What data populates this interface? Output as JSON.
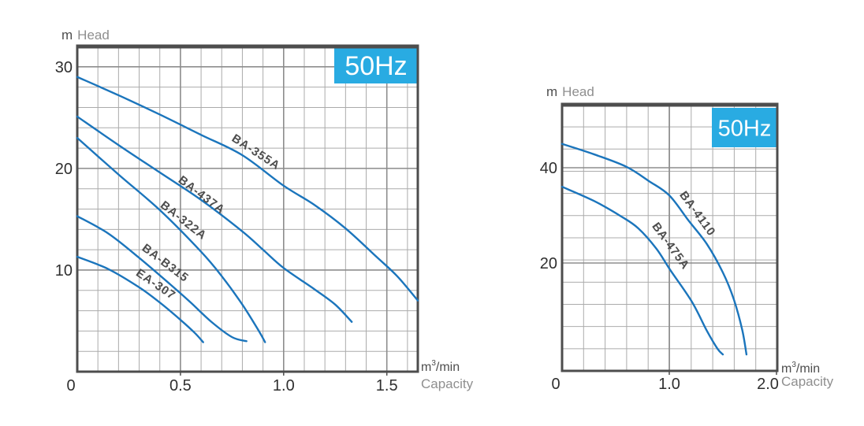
{
  "page": {
    "background": "#ffffff"
  },
  "colors": {
    "curve": "#1b75bc",
    "badge_bg": "#29abe2",
    "badge_text": "#ffffff",
    "frame": "#4d4d4d",
    "grid_minor": "#ababab",
    "grid_major": "#8d8d8d",
    "tick_text": "#2f2f2f",
    "unit_text": "#4d4d4d",
    "muted_text": "#8f8f8f",
    "curve_label": "#4d4d4d"
  },
  "chart_data": [
    {
      "id": "left",
      "type": "line",
      "frequency_badge": "50Hz",
      "y_axis": {
        "unit": "m",
        "label": "Head",
        "range": [
          0,
          32
        ],
        "grid_step": 2,
        "ticks": [
          {
            "value": 10,
            "label": "10"
          },
          {
            "value": 20,
            "label": "20"
          },
          {
            "value": 30,
            "label": "30"
          }
        ],
        "major_values": [
          10,
          20,
          30
        ]
      },
      "x_axis": {
        "unit_base": "m",
        "unit_exp": "3",
        "unit_tail": "/min",
        "label": "Capacity",
        "range": [
          0,
          1.65
        ],
        "grid_step": 0.1,
        "ticks": [
          {
            "value": 0,
            "label": "0"
          },
          {
            "value": 0.5,
            "label": "0.5"
          },
          {
            "value": 1,
            "label": "1.0"
          },
          {
            "value": 1.5,
            "label": "1.5"
          }
        ],
        "major_values": [
          0.5,
          1,
          1.5
        ]
      },
      "series": [
        {
          "name": "BA-355A",
          "label_at": {
            "x": 0.856,
            "y": 21.3,
            "angle": 33
          },
          "points": [
            [
              0,
              29
            ],
            [
              0.2,
              27.2
            ],
            [
              0.4,
              25.3
            ],
            [
              0.6,
              23.3
            ],
            [
              0.8,
              21.3
            ],
            [
              1.0,
              18.3
            ],
            [
              1.15,
              16.4
            ],
            [
              1.3,
              14.1
            ],
            [
              1.45,
              11.3
            ],
            [
              1.55,
              9.4
            ],
            [
              1.65,
              7.0
            ]
          ]
        },
        {
          "name": "BA-437A",
          "label_at": {
            "x": 0.592,
            "y": 17.1,
            "angle": 37
          },
          "points": [
            [
              0,
              25.1
            ],
            [
              0.2,
              22.3
            ],
            [
              0.4,
              19.6
            ],
            [
              0.6,
              16.9
            ],
            [
              0.8,
              13.8
            ],
            [
              0.9,
              12.0
            ],
            [
              1.0,
              10.2
            ],
            [
              1.15,
              8.1
            ],
            [
              1.25,
              6.6
            ],
            [
              1.33,
              4.9
            ]
          ]
        },
        {
          "name": "BA-322A",
          "label_at": {
            "x": 0.504,
            "y": 14.6,
            "angle": 38
          },
          "points": [
            [
              0,
              23.0
            ],
            [
              0.2,
              19.4
            ],
            [
              0.4,
              15.9
            ],
            [
              0.6,
              11.8
            ],
            [
              0.7,
              9.4
            ],
            [
              0.8,
              6.6
            ],
            [
              0.88,
              4.0
            ],
            [
              0.91,
              2.9
            ]
          ]
        },
        {
          "name": "BA-B315",
          "label_at": {
            "x": 0.416,
            "y": 10.4,
            "angle": 37
          },
          "points": [
            [
              0,
              15.3
            ],
            [
              0.15,
              13.6
            ],
            [
              0.3,
              11.2
            ],
            [
              0.45,
              8.6
            ],
            [
              0.55,
              6.8
            ],
            [
              0.65,
              4.9
            ],
            [
              0.75,
              3.4
            ],
            [
              0.82,
              3.0
            ]
          ]
        },
        {
          "name": "EA-307",
          "label_at": {
            "x": 0.371,
            "y": 8.3,
            "angle": 34
          },
          "points": [
            [
              0,
              11.3
            ],
            [
              0.15,
              10.1
            ],
            [
              0.3,
              8.3
            ],
            [
              0.4,
              6.8
            ],
            [
              0.5,
              5.1
            ],
            [
              0.57,
              3.8
            ],
            [
              0.61,
              2.9
            ]
          ]
        }
      ]
    },
    {
      "id": "right",
      "type": "line",
      "frequency_badge": "50Hz",
      "y_axis": {
        "unit": "m",
        "label": "Head",
        "range": [
          0,
          53
        ],
        "grid_step": 5,
        "ticks": [
          {
            "value": 20,
            "label": "20"
          },
          {
            "value": 40,
            "label": "40"
          }
        ],
        "major_values": [
          20,
          40
        ]
      },
      "x_axis": {
        "unit_base": "m",
        "unit_exp": "3",
        "unit_tail": "/min",
        "label": "Capacity",
        "range": [
          0,
          2.0
        ],
        "grid_step": 0.2,
        "ticks": [
          {
            "value": 0,
            "label": "0"
          },
          {
            "value": 1,
            "label": "1.0"
          },
          {
            "value": 2,
            "label": "2.0"
          }
        ],
        "major_values": [
          1,
          2
        ]
      },
      "series": [
        {
          "name": "BA-4110",
          "label_at": {
            "x": 1.235,
            "y": 29.9,
            "angle": 54
          },
          "points": [
            [
              0,
              45
            ],
            [
              0.3,
              42.8
            ],
            [
              0.6,
              40.2
            ],
            [
              0.81,
              37.2
            ],
            [
              1.0,
              34.2
            ],
            [
              1.18,
              28.9
            ],
            [
              1.35,
              24.0
            ],
            [
              1.5,
              18.0
            ],
            [
              1.6,
              12.5
            ],
            [
              1.68,
              6.0
            ],
            [
              1.72,
              0.8
            ]
          ]
        },
        {
          "name": "BA-475A",
          "label_at": {
            "x": 0.985,
            "y": 23.1,
            "angle": 54
          },
          "points": [
            [
              0,
              36
            ],
            [
              0.3,
              33.0
            ],
            [
              0.55,
              29.8
            ],
            [
              0.71,
              27.3
            ],
            [
              0.88,
              23.0
            ],
            [
              1.01,
              18.5
            ],
            [
              1.21,
              11.9
            ],
            [
              1.35,
              5.8
            ],
            [
              1.45,
              2.0
            ],
            [
              1.5,
              0.8
            ]
          ]
        }
      ]
    }
  ]
}
